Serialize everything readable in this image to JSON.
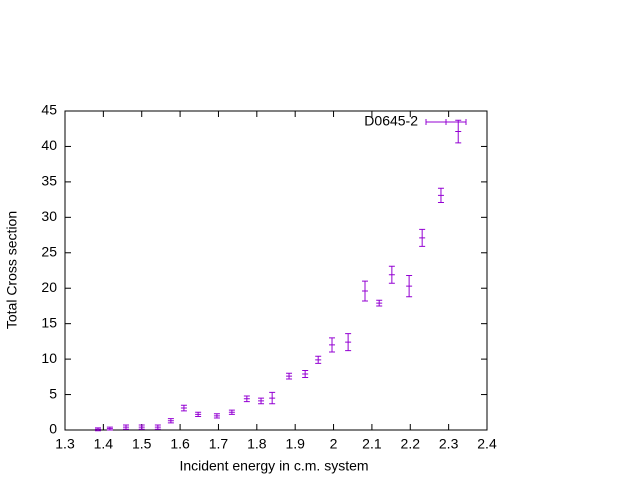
{
  "chart_data": {
    "type": "errorbar",
    "xlabel": "Incident energy in c.m. system",
    "ylabel": "Total Cross section",
    "series": [
      {
        "name": "D0645-2",
        "color": "#9400d3",
        "x": [
          1.386,
          1.417,
          1.459,
          1.5,
          1.542,
          1.576,
          1.61,
          1.647,
          1.696,
          1.735,
          1.774,
          1.811,
          1.84,
          1.884,
          1.926,
          1.96,
          1.996,
          2.038,
          2.082,
          2.119,
          2.152,
          2.197,
          2.231,
          2.28,
          2.325
        ],
        "y": [
          0.1,
          0.2,
          0.4,
          0.4,
          0.4,
          1.3,
          3.1,
          2.2,
          2.0,
          2.5,
          4.4,
          4.1,
          4.5,
          7.6,
          7.9,
          9.9,
          12.0,
          12.4,
          19.6,
          17.9,
          21.9,
          20.3,
          27.1,
          33.1,
          42.1
        ],
        "yerr": [
          0.2,
          0.2,
          0.3,
          0.3,
          0.3,
          0.3,
          0.4,
          0.3,
          0.3,
          0.3,
          0.4,
          0.4,
          0.8,
          0.4,
          0.5,
          0.5,
          1.0,
          1.2,
          1.4,
          0.4,
          1.2,
          1.5,
          1.2,
          1.0,
          1.6
        ]
      }
    ],
    "xlim": [
      1.3,
      2.4
    ],
    "xticks": [
      1.3,
      1.4,
      1.5,
      1.6,
      1.7,
      1.8,
      1.9,
      2,
      2.1,
      2.2,
      2.3,
      2.4
    ],
    "ylim": [
      0,
      45
    ],
    "yticks": [
      0,
      5,
      10,
      15,
      20,
      25,
      30,
      35,
      40,
      45
    ],
    "legend": "upper-right"
  }
}
